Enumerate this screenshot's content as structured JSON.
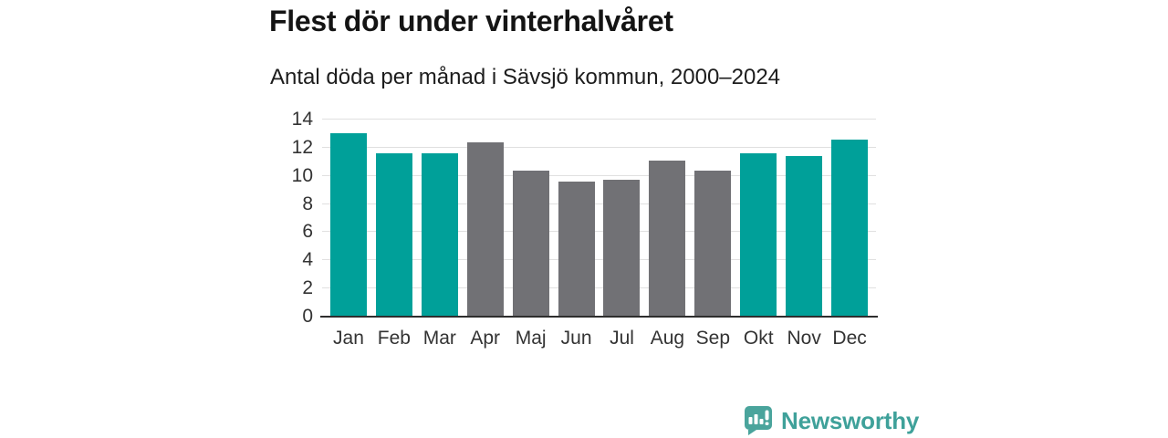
{
  "header": {
    "title": "Flest dör under vinterhalvåret",
    "subtitle": "Antal döda per månad i Sävsjö kommun, 2000–2024"
  },
  "chart_data": {
    "type": "bar",
    "title": "Flest dör under vinterhalvåret",
    "subtitle": "Antal döda per månad i Sävsjö kommun, 2000–2024",
    "categories": [
      "Jan",
      "Feb",
      "Mar",
      "Apr",
      "Maj",
      "Jun",
      "Jul",
      "Aug",
      "Sep",
      "Okt",
      "Nov",
      "Dec"
    ],
    "values": [
      13.0,
      11.6,
      11.6,
      12.4,
      10.4,
      9.6,
      9.7,
      11.1,
      10.4,
      11.6,
      11.4,
      12.6
    ],
    "bar_colors": [
      "teal",
      "teal",
      "teal",
      "gray",
      "gray",
      "gray",
      "gray",
      "gray",
      "gray",
      "teal",
      "teal",
      "teal"
    ],
    "palette": {
      "teal": "#00a099",
      "gray": "#717175"
    },
    "xlabel": "",
    "ylabel": "",
    "ylim": [
      0,
      14
    ],
    "y_ticks": [
      0,
      2,
      4,
      6,
      8,
      10,
      12,
      14
    ],
    "grid": "horizontal",
    "gridline_color": "#e0e0e0",
    "axis_line_color": "#2e2e2e",
    "legend": "none"
  },
  "footer": {
    "brand": "Newsworthy",
    "brand_color": "#3fa19a",
    "logo_icon": "newsworthy-speech-bubble-bar-chart-icon"
  }
}
